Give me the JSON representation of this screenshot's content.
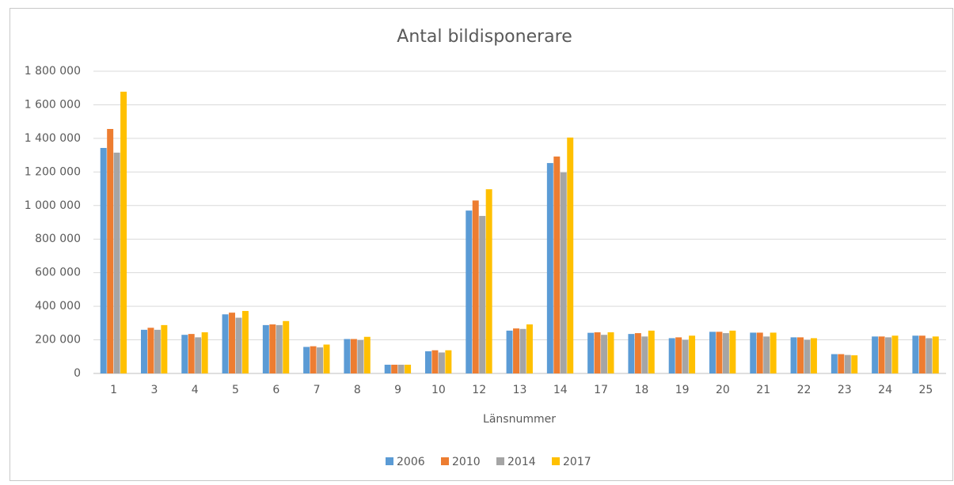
{
  "chart_data": {
    "type": "bar",
    "title": "Antal bildisponerare",
    "x_label": "Länsnummer",
    "categories": [
      "1",
      "3",
      "4",
      "5",
      "6",
      "7",
      "8",
      "9",
      "10",
      "12",
      "13",
      "14",
      "17",
      "18",
      "19",
      "20",
      "21",
      "22",
      "23",
      "24",
      "25"
    ],
    "series": [
      {
        "name": "2006",
        "color": "#5b9bd5",
        "values": [
          1343000,
          260000,
          230000,
          352000,
          288000,
          158000,
          205000,
          52000,
          132000,
          970000,
          255000,
          1253000,
          242000,
          235000,
          210000,
          248000,
          243000,
          215000,
          115000,
          220000,
          225000
        ]
      },
      {
        "name": "2010",
        "color": "#ed7d31",
        "values": [
          1456000,
          272000,
          235000,
          362000,
          292000,
          162000,
          205000,
          52000,
          138000,
          1030000,
          268000,
          1292000,
          245000,
          240000,
          215000,
          248000,
          243000,
          215000,
          115000,
          220000,
          225000
        ]
      },
      {
        "name": "2014",
        "color": "#a5a5a5",
        "values": [
          1315000,
          260000,
          215000,
          332000,
          288000,
          155000,
          198000,
          52000,
          125000,
          938000,
          265000,
          1197000,
          230000,
          220000,
          200000,
          240000,
          220000,
          200000,
          110000,
          215000,
          210000
        ]
      },
      {
        "name": "2017",
        "color": "#ffc000",
        "values": [
          1678000,
          288000,
          245000,
          372000,
          312000,
          172000,
          218000,
          52000,
          138000,
          1097000,
          292000,
          1405000,
          245000,
          255000,
          225000,
          255000,
          243000,
          210000,
          108000,
          225000,
          220000
        ]
      }
    ],
    "ylim": [
      0,
      1800000
    ],
    "yticks": [
      0,
      {
        "value": 200000,
        "label": "200 000"
      },
      {
        "value": 400000,
        "label": "400 000"
      },
      {
        "value": 600000,
        "label": "600 000"
      },
      {
        "value": 800000,
        "label": "800 000"
      },
      {
        "value": 1000000,
        "label": "1 000 000"
      },
      {
        "value": 1200000,
        "label": "1 200 000"
      },
      {
        "value": 1400000,
        "label": "1 400 000"
      },
      {
        "value": 1600000,
        "label": "1 600 000"
      },
      {
        "value": 1800000,
        "label": "1 800 000"
      }
    ],
    "grid": true,
    "legend": "bottom"
  }
}
